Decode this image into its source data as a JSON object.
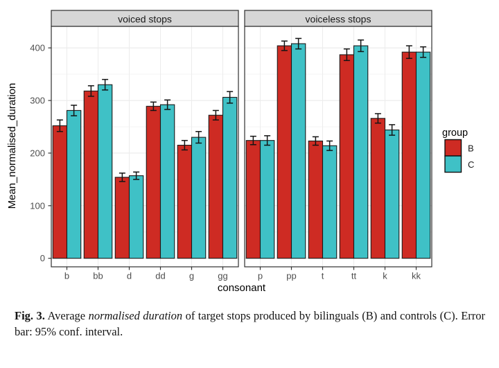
{
  "caption": {
    "label": "Fig. 3.",
    "before_italic": "Average",
    "italic": "normalised duration",
    "after_italic": "of target stops produced by bilinguals (B) and controls (C). Error bar: 95% conf. interval."
  },
  "chart_data": {
    "type": "bar",
    "subtype": "grouped-dodged-bars-with-error-bars, two facets",
    "title": "",
    "xlabel": "consonant",
    "ylabel": "Mean_normalised_duration",
    "ylim": [
      0,
      442
    ],
    "yticks": [
      0,
      100,
      200,
      300,
      400
    ],
    "grid": "horizontal major at 100s, minor at 50s, vertical major per category",
    "error_bars": "95% conf. interval",
    "colors": {
      "B": "#CE2B23",
      "C": "#3FC1C6"
    },
    "panel": {
      "background": "#ffffff",
      "border": "#2e2e2e",
      "strip_fill": "#d6d6d6"
    },
    "legend": {
      "title": "group",
      "position": "right",
      "entries": [
        {
          "label": "B",
          "color": "#CE2B23"
        },
        {
          "label": "C",
          "color": "#3FC1C6"
        }
      ]
    },
    "facets": [
      {
        "label": "voiced stops",
        "categories": [
          "b",
          "bb",
          "d",
          "dd",
          "g",
          "gg"
        ],
        "series": [
          {
            "name": "B",
            "values": [
              252,
              318,
              154,
              289,
              215,
              272
            ],
            "ci_low": [
              241,
              308,
              146,
              281,
              206,
              263
            ],
            "ci_high": [
              263,
              328,
              162,
              297,
              224,
              281
            ]
          },
          {
            "name": "C",
            "values": [
              281,
              330,
              157,
              292,
              230,
              306
            ],
            "ci_low": [
              271,
              320,
              150,
              283,
              219,
              295
            ],
            "ci_high": [
              291,
              340,
              164,
              301,
              241,
              317
            ]
          }
        ]
      },
      {
        "label": "voiceless stops",
        "categories": [
          "p",
          "pp",
          "t",
          "tt",
          "k",
          "kk"
        ],
        "series": [
          {
            "name": "B",
            "values": [
              224,
              404,
              223,
              387,
              266,
              392
            ],
            "ci_low": [
              216,
              395,
              215,
              376,
              257,
              380
            ],
            "ci_high": [
              232,
              413,
              231,
              398,
              275,
              404
            ]
          },
          {
            "name": "C",
            "values": [
              224,
              408,
              214,
              404,
              244,
              392
            ],
            "ci_low": [
              215,
              398,
              205,
              393,
              234,
              382
            ],
            "ci_high": [
              233,
              418,
              223,
              415,
              254,
              402
            ]
          }
        ]
      }
    ]
  }
}
